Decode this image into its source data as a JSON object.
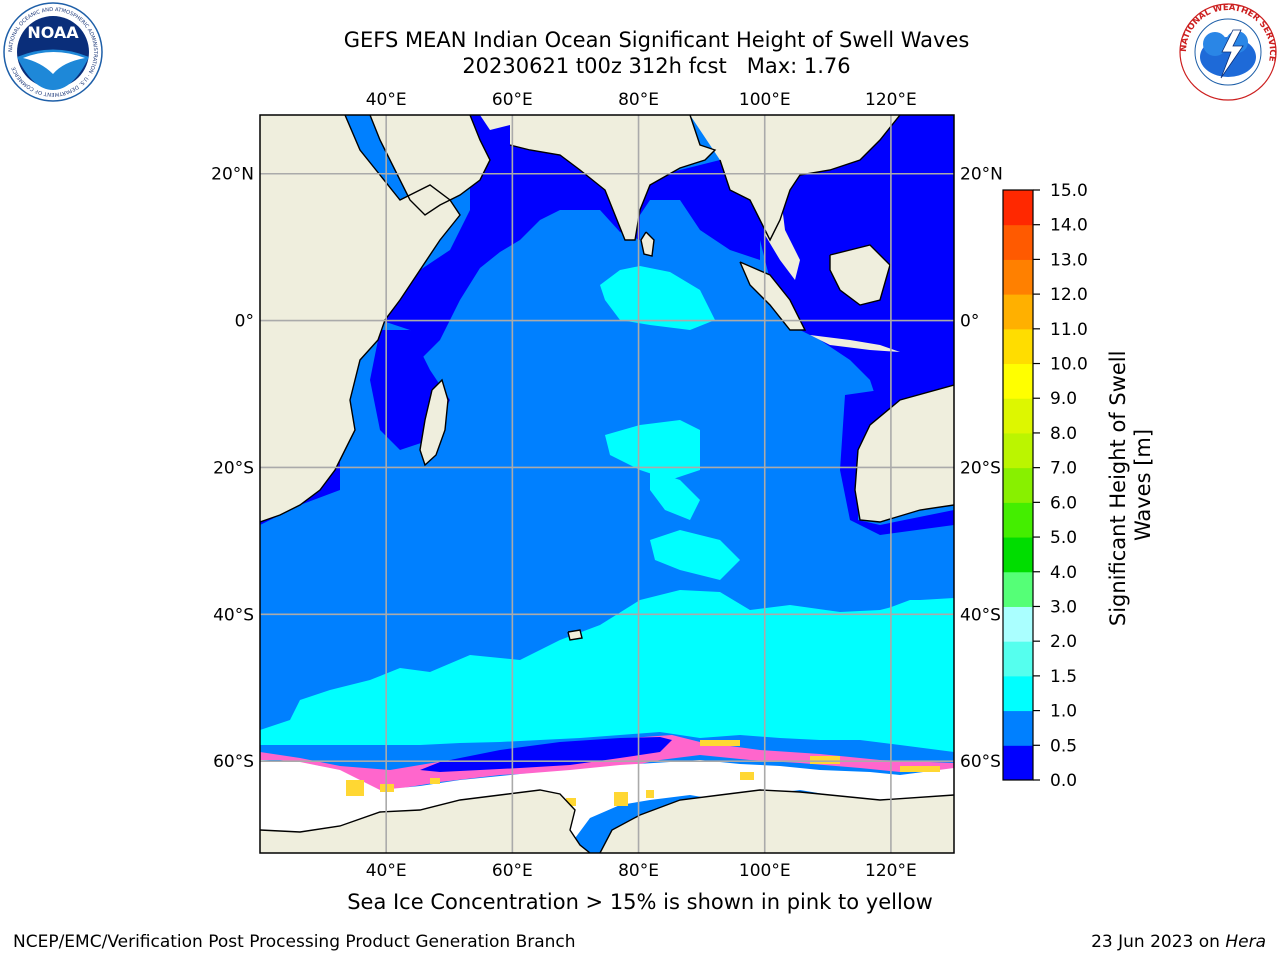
{
  "title": {
    "line1": "GEFS MEAN Indian Ocean Significant Height of Swell Waves",
    "line2": "20230621 t00z 312h fcst   Max: 1.76"
  },
  "logos": {
    "left": {
      "name": "noaa-logo",
      "text": "NOAA",
      "ring_text": "NATIONAL OCEANIC AND ATMOSPHERIC ADMINISTRATION · U.S. DEPARTMENT OF COMMERCE"
    },
    "right": {
      "name": "national-weather-service-logo",
      "ring_text": "NATIONAL WEATHER SERVICE"
    }
  },
  "map": {
    "projection": "equirectangular",
    "lon_range": [
      20,
      130
    ],
    "lat_range": [
      -72.5,
      28
    ],
    "gridlines": true,
    "lon_ticks": [
      {
        "value": 40,
        "label": "40°E"
      },
      {
        "value": 60,
        "label": "60°E"
      },
      {
        "value": 80,
        "label": "80°E"
      },
      {
        "value": 100,
        "label": "100°E"
      },
      {
        "value": 120,
        "label": "120°E"
      }
    ],
    "lat_ticks": [
      {
        "value": 20,
        "label": "20°N"
      },
      {
        "value": 0,
        "label": "0°"
      },
      {
        "value": -20,
        "label": "20°S"
      },
      {
        "value": -40,
        "label": "40°S"
      },
      {
        "value": -60,
        "label": "60°S"
      }
    ],
    "colors": {
      "land": "#efeedd",
      "ocean_0_to_0_5": "#0000ff",
      "ocean_0_5_to_1_0": "#0080ff",
      "ocean_1_0_to_1_5": "#00ffff",
      "sea_ice_low": "#ff66cc",
      "sea_ice_high": "#ffd733",
      "ice_shelf": "#ffffff",
      "gridline": "#aaaaaa"
    }
  },
  "colorbar": {
    "label": "Significant Height of Swell Waves [m]",
    "ticks": [
      "0.0",
      "0.5",
      "1.0",
      "1.5",
      "2.0",
      "3.0",
      "4.0",
      "5.0",
      "6.0",
      "7.0",
      "8.0",
      "9.0",
      "10.0",
      "11.0",
      "12.0",
      "13.0",
      "14.0",
      "15.0"
    ],
    "colors": [
      "#0000ff",
      "#0080ff",
      "#00ffff",
      "#55ffee",
      "#aaffff",
      "#55ff77",
      "#00dd00",
      "#44ee00",
      "#88f000",
      "#bbf500",
      "#ddf700",
      "#ffff00",
      "#ffdd00",
      "#ffb000",
      "#ff8000",
      "#ff5a00",
      "#ff2800"
    ]
  },
  "caption": "Sea Ice Concentration > 15% is shown in pink to yellow",
  "footer": {
    "left": "NCEP/EMC/Verification Post Processing Product Generation Branch",
    "right_date": "23 Jun 2023 on ",
    "right_host": "Hera"
  }
}
